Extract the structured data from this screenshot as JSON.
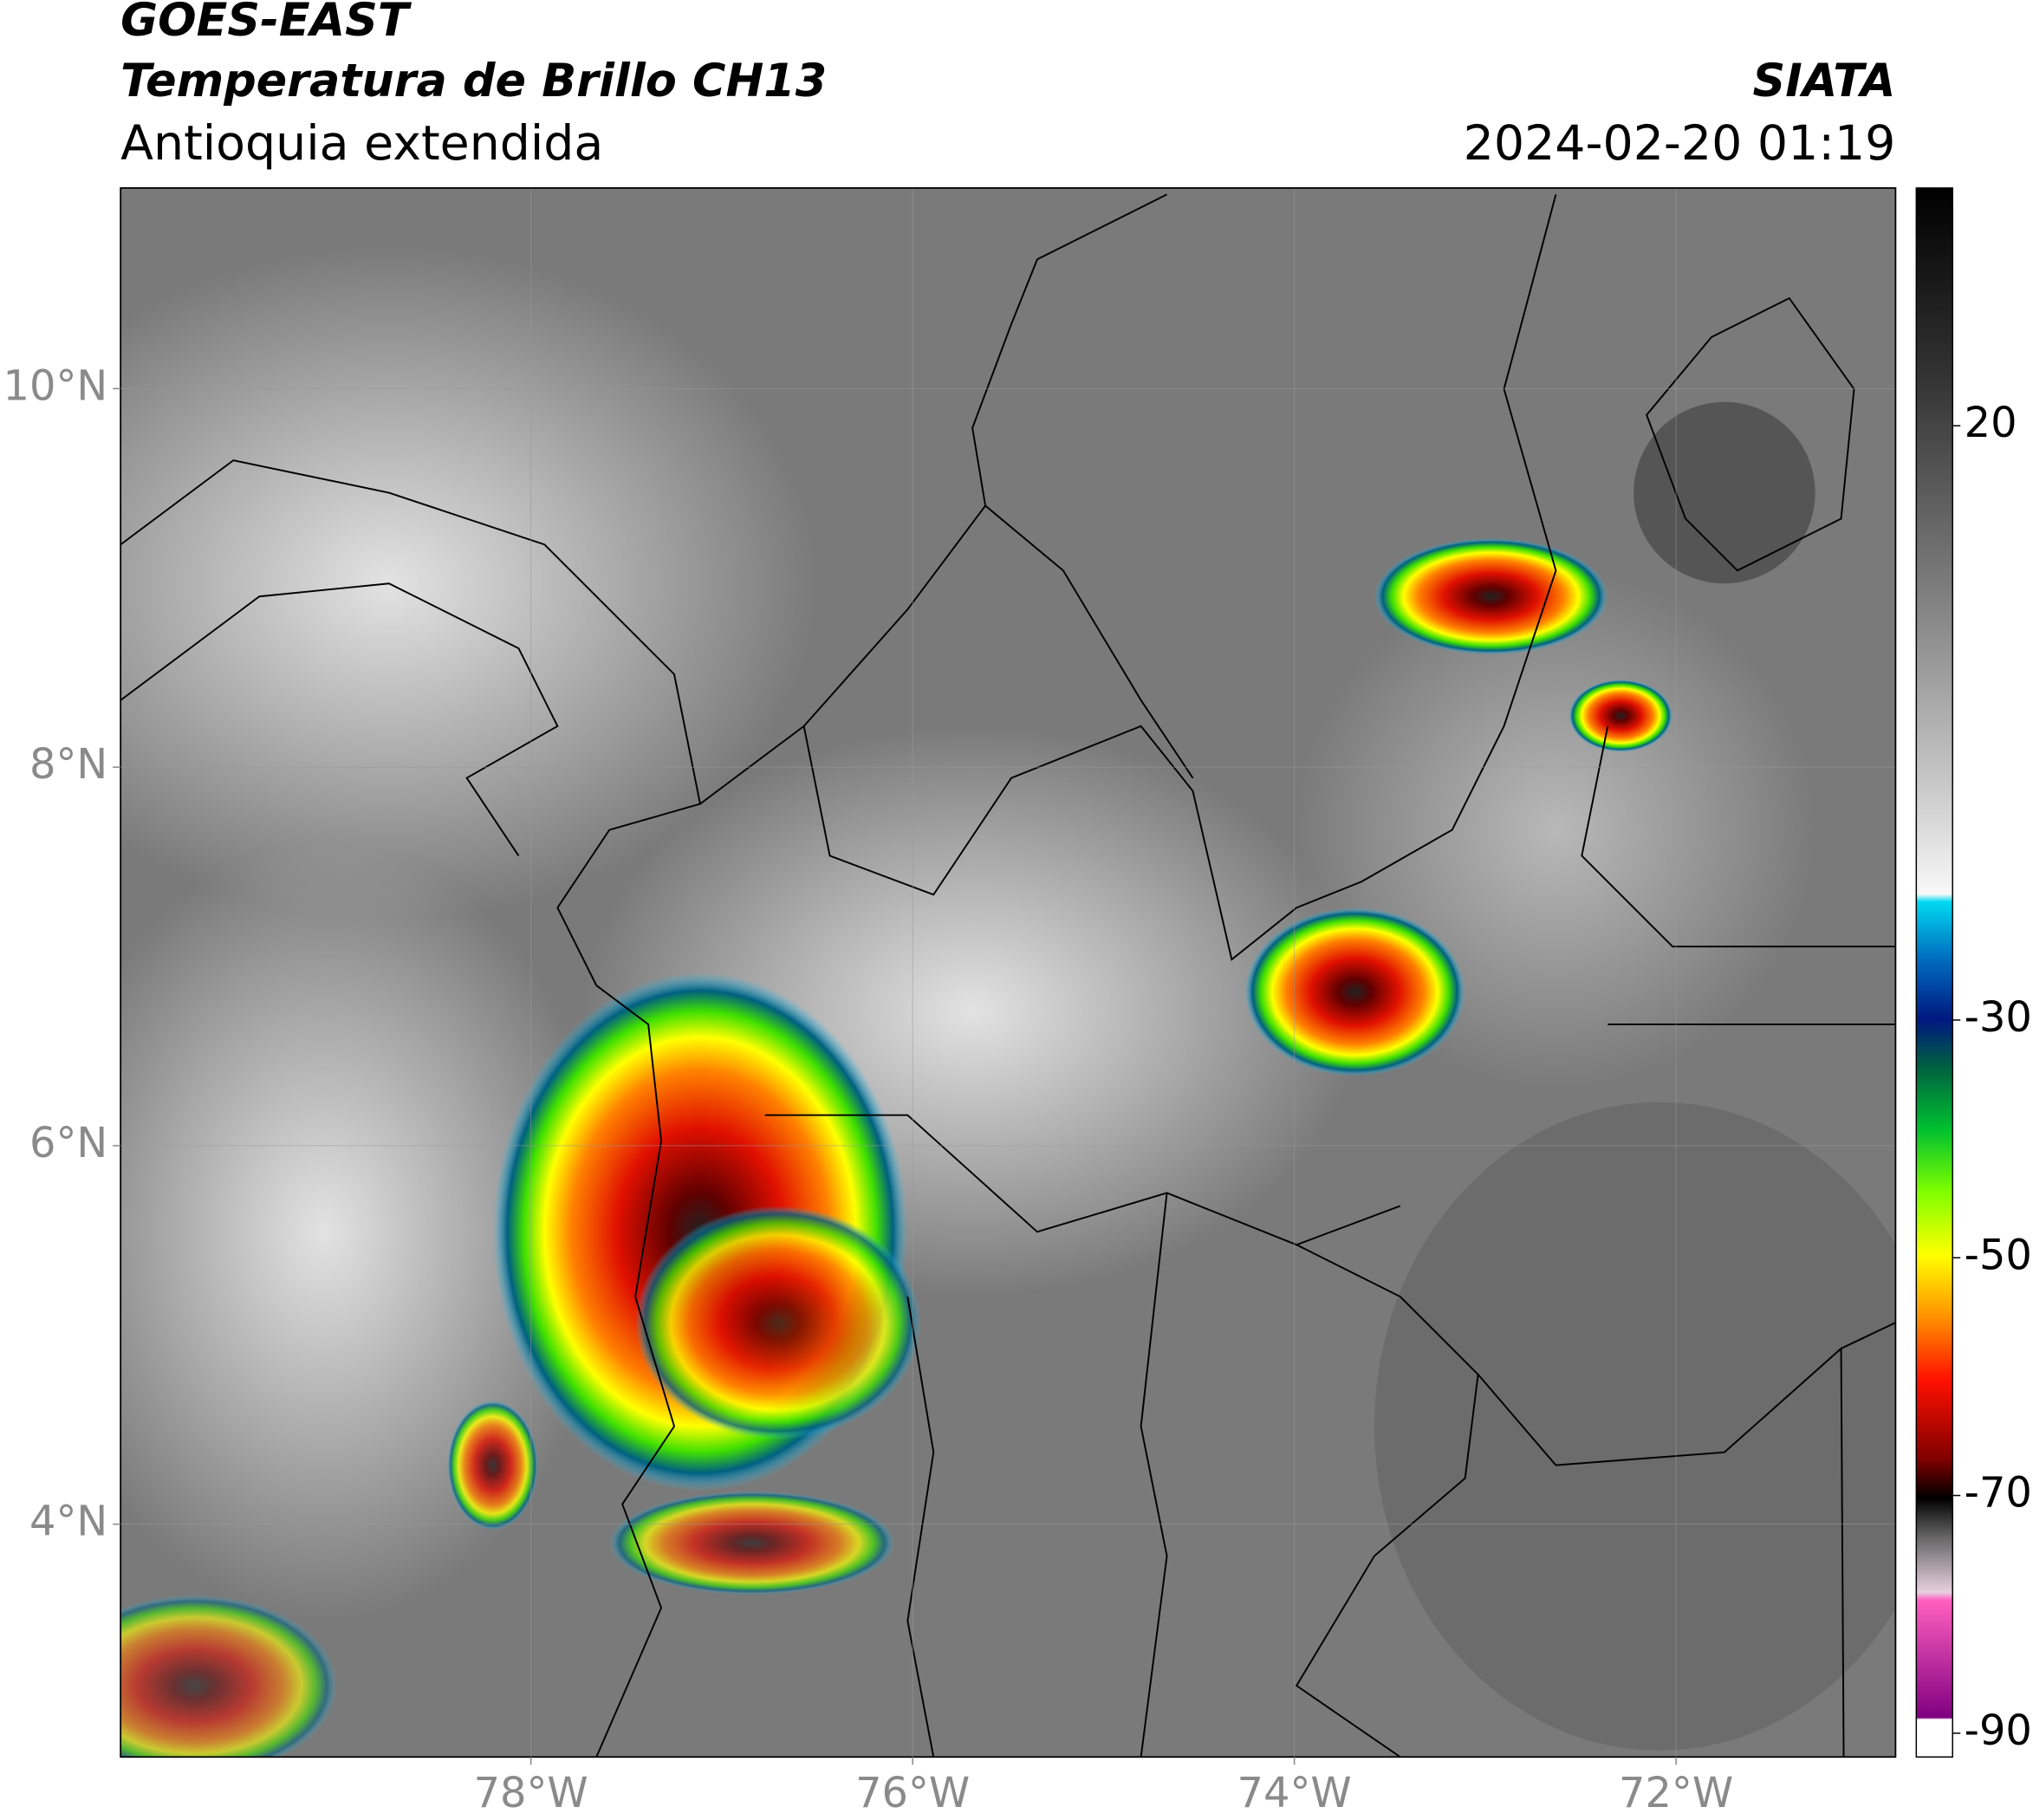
{
  "header": {
    "title": "GOES-EAST",
    "subtitle": "Temperatura de Brillo CH13",
    "region": "Antioquia extendida",
    "source": "SIATA",
    "datetime": "2024-02-20 01:19"
  },
  "map": {
    "xlim": [
      -80.15,
      -70.85
    ],
    "ylim": [
      2.77,
      11.06
    ],
    "xticks": [
      {
        "value": -78,
        "label": "78°W"
      },
      {
        "value": -76,
        "label": "76°W"
      },
      {
        "value": -74,
        "label": "74°W"
      },
      {
        "value": -72,
        "label": "72°W"
      }
    ],
    "yticks": [
      {
        "value": 4,
        "label": "4°N"
      },
      {
        "value": 6,
        "label": "6°N"
      },
      {
        "value": 8,
        "label": "8°N"
      },
      {
        "value": 10,
        "label": "10°N"
      }
    ]
  },
  "colorbar": {
    "lim": [
      -92,
      40
    ],
    "ticks": [
      20,
      -30,
      -50,
      -70,
      -90
    ]
  }
}
